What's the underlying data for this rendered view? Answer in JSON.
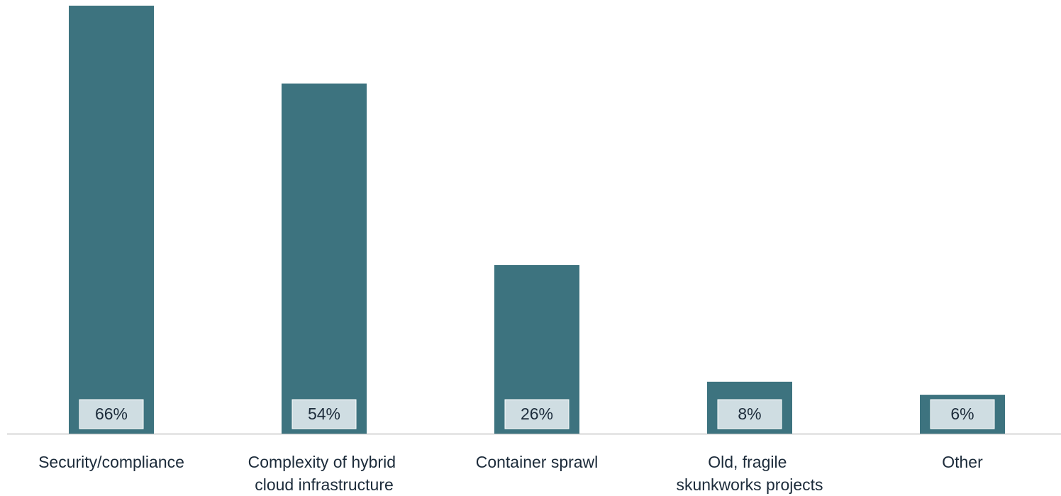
{
  "chart_data": {
    "type": "bar",
    "categories": [
      "Security/compliance",
      "Complexity of hybrid cloud infrastructure",
      "Container sprawl",
      "Old, fragile skunkworks projects",
      "Other"
    ],
    "values": [
      66,
      54,
      26,
      8,
      6
    ],
    "value_labels": [
      "66%",
      "54%",
      "26%",
      "8%",
      "6%"
    ],
    "color": "#3d737f",
    "ylim": [
      0,
      66
    ]
  }
}
